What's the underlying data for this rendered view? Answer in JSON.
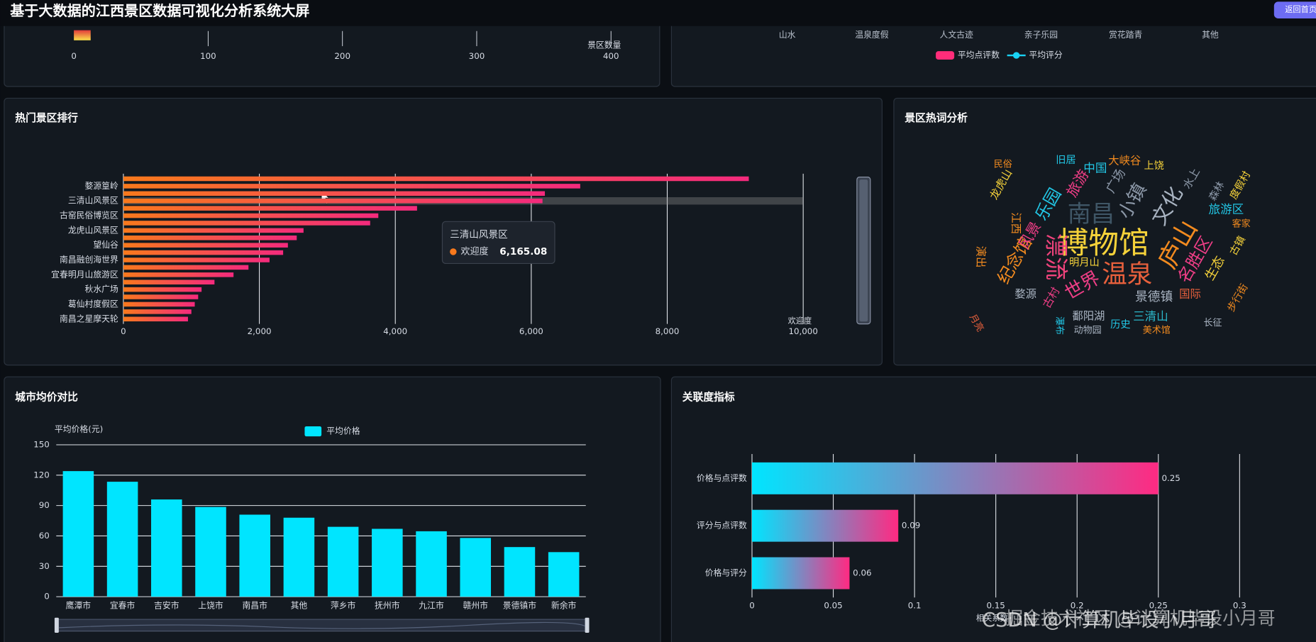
{
  "header": {
    "title": "基于大数据的江西景区数据可视化分析系统大屏",
    "button": "返回首页"
  },
  "chart_data": [
    {
      "type": "bar",
      "xlim": [
        0,
        400
      ],
      "xticks": [
        0,
        100,
        200,
        300,
        400
      ],
      "xlabel": "景区数量",
      "visual_colors": [
        "#e23b3b",
        "#fbe14a"
      ],
      "grid": true
    },
    {
      "type": "bar",
      "categories": [
        "山水",
        "温泉度假",
        "人文古迹",
        "亲子乐园",
        "赏花踏青",
        "其他"
      ],
      "series": [
        {
          "name": "平均点评数",
          "color": "#ff2d7a"
        },
        {
          "name": "平均评分",
          "color": "#19d3f5"
        }
      ]
    },
    {
      "type": "bar",
      "title": "热门景区排行",
      "horizontal": true,
      "categories": [
        null,
        "婺源篁岭",
        null,
        "三清山风景区",
        null,
        "古窑民俗博览区",
        null,
        "龙虎山风景区",
        null,
        "望仙谷",
        null,
        "南昌融创海世界",
        null,
        "宜春明月山旅游区",
        null,
        "秋水广场",
        null,
        "葛仙村度假区",
        null,
        "南昌之星摩天轮"
      ],
      "values": [
        9200,
        6720,
        6200,
        6165.08,
        4320,
        3750,
        3630,
        2650,
        2550,
        2420,
        2350,
        2150,
        1840,
        1620,
        1340,
        1150,
        1100,
        1050,
        1000,
        950
      ],
      "colors": [
        "#f8791c",
        "#f42a7d"
      ],
      "xlabel": "欢迎度",
      "xlim": [
        0,
        10000
      ],
      "xticks": [
        0,
        {
          "value": 2000,
          "label": "2,000"
        },
        {
          "value": 4000,
          "label": "4,000"
        },
        {
          "value": 6000,
          "label": "6,000"
        },
        {
          "value": 8000,
          "label": "8,000"
        },
        {
          "value": 10000,
          "label": "10,000"
        }
      ],
      "grid": true,
      "tooltip": {
        "title": "三清山风景区",
        "name": "欢迎度",
        "label": "6,165.08"
      }
    },
    {
      "type": "wordcloud",
      "title": "景区热词分析",
      "words": [
        {
          "text": "博物馆",
          "color": "#f5d23a"
        },
        {
          "text": "温泉",
          "color": "#e8603c"
        },
        {
          "text": "漂流",
          "color": "#f0437c"
        },
        {
          "text": "南昌",
          "color": "#3f5666"
        },
        {
          "text": "庐山",
          "color": "#f38b1f"
        },
        {
          "text": "文化",
          "color": "#a9b4c2"
        },
        {
          "text": "小镇",
          "color": "#8c98a8"
        },
        {
          "text": "乐园",
          "color": "#22c7e6"
        },
        {
          "text": "世界",
          "color": "#ee3e86"
        },
        {
          "text": "名胜区",
          "color": "#ee3e86"
        },
        {
          "text": "纪念馆",
          "color": "#f38b1f"
        },
        {
          "text": "景德镇",
          "color": "#a9b4c2"
        },
        {
          "text": "旅游",
          "color": "#ee3e86"
        },
        {
          "text": "中国",
          "color": "#22c7e6"
        },
        {
          "text": "大峡谷",
          "color": "#f38b1f"
        },
        {
          "text": "广场",
          "color": "#8c98a8"
        },
        {
          "text": "三清山",
          "color": "#2bb6c9"
        },
        {
          "text": "鄱阳湖",
          "color": "#a9b4c2"
        },
        {
          "text": "历史",
          "color": "#22c7e6"
        },
        {
          "text": "动物园",
          "color": "#a9b4c2"
        },
        {
          "text": "美术馆",
          "color": "#f38b1f"
        },
        {
          "text": "国际",
          "color": "#e8603c"
        },
        {
          "text": "生态",
          "color": "#f5d23a"
        },
        {
          "text": "旅游区",
          "color": "#22c7e6"
        },
        {
          "text": "明月山",
          "color": "#f5d23a"
        },
        {
          "text": "婺源",
          "color": "#a9b4c2"
        },
        {
          "text": "古村",
          "color": "#ee3e86"
        },
        {
          "text": "龙虎山",
          "color": "#f5d23a"
        },
        {
          "text": "风景",
          "color": "#ee3e86"
        },
        {
          "text": "江西",
          "color": "#f38b1f"
        },
        {
          "text": "上饶",
          "color": "#f5d23a"
        },
        {
          "text": "旧居",
          "color": "#22c7e6"
        },
        {
          "text": "步行街",
          "color": "#f38b1f"
        },
        {
          "text": "长征",
          "color": "#a9b4c2"
        },
        {
          "text": "森林",
          "color": "#8c98a8"
        },
        {
          "text": "度假村",
          "color": "#f5d23a"
        },
        {
          "text": "客家",
          "color": "#f38b1f"
        },
        {
          "text": "民俗",
          "color": "#f38b1f"
        },
        {
          "text": "月亮",
          "color": "#e8603c"
        },
        {
          "text": "演出",
          "color": "#f38b1f"
        },
        {
          "text": "古镇",
          "color": "#f5d23a"
        },
        {
          "text": "瀑布",
          "color": "#22c7e6"
        },
        {
          "text": "水上",
          "color": "#8c98a8"
        }
      ]
    },
    {
      "type": "bar",
      "title": "城市均价对比",
      "ylabel": "平均价格(元)",
      "categories": [
        "鹰潭市",
        "宜春市",
        "吉安市",
        "上饶市",
        "南昌市",
        "其他",
        "萍乡市",
        "抚州市",
        "九江市",
        "赣州市",
        "景德镇市",
        "新余市"
      ],
      "series": [
        {
          "name": "平均价格",
          "color": "#00e5ff",
          "values": [
            124,
            113.5,
            96,
            88.6,
            81,
            78,
            69,
            67,
            64.6,
            58,
            49,
            44
          ]
        }
      ],
      "ylim": [
        0,
        150
      ],
      "yticks": [
        0,
        30,
        60,
        90,
        120,
        150
      ],
      "grid": true
    },
    {
      "type": "bar",
      "title": "关联度指标",
      "horizontal": true,
      "categories": [
        "价格与点评数",
        "评分与点评数",
        "价格与评分"
      ],
      "values": [
        0.25,
        0.09,
        0.06
      ],
      "colors": [
        "#00e5ff",
        "#ff2a82"
      ],
      "xlabel": "相关系数",
      "xlim": [
        0,
        0.3
      ],
      "xticks": [
        0,
        0.05,
        0.1,
        0.15,
        0.2,
        0.25,
        0.3
      ],
      "grid": true
    }
  ],
  "watermark": [
    "掘金技术社区 @计算机毕设小月哥",
    "CSDN @计算机毕设小月哥"
  ]
}
